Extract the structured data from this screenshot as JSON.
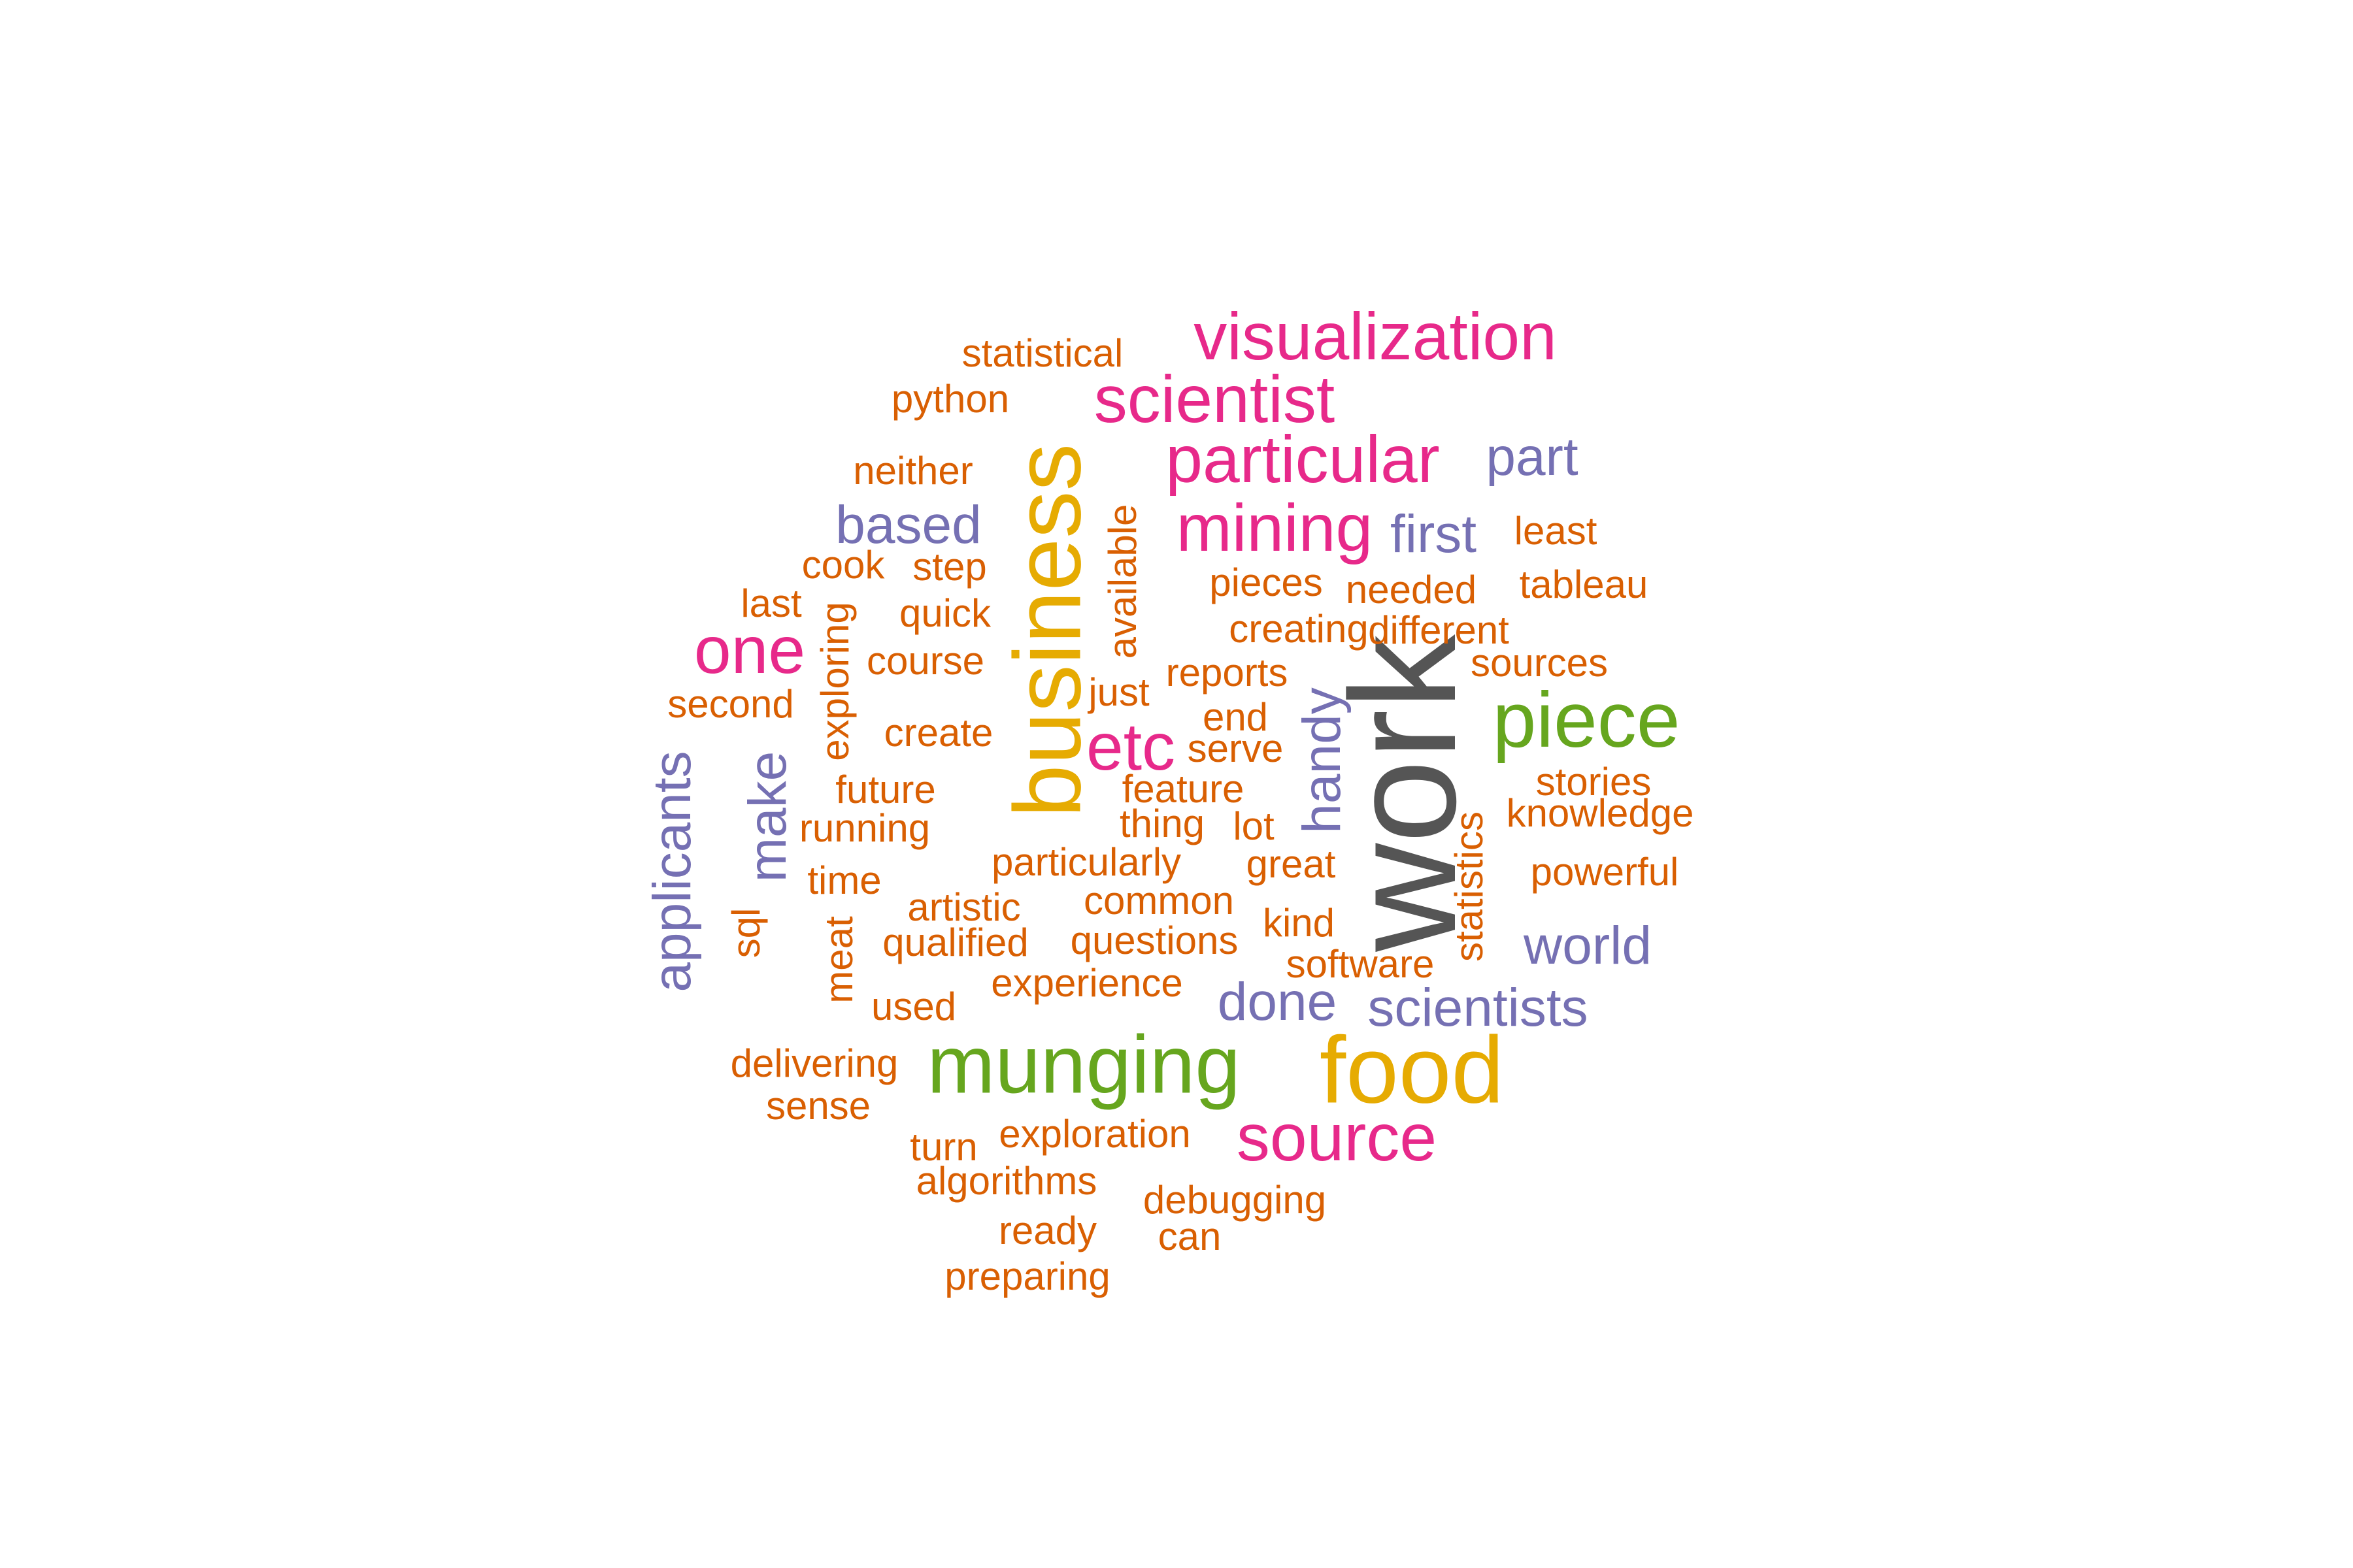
{
  "palette": {
    "orange": "#D95F02",
    "purple": "#7570B3",
    "magenta": "#E7298A",
    "green": "#66A61E",
    "gold": "#E6AB02",
    "gray": "#555555"
  },
  "words": [
    {
      "text": "work",
      "color": "gray"
    },
    {
      "text": "business",
      "color": "gold"
    },
    {
      "text": "food",
      "color": "gold"
    },
    {
      "text": "munging",
      "color": "green"
    },
    {
      "text": "piece",
      "color": "green"
    },
    {
      "text": "visualization",
      "color": "magenta"
    },
    {
      "text": "scientist",
      "color": "magenta"
    },
    {
      "text": "particular",
      "color": "magenta"
    },
    {
      "text": "mining",
      "color": "magenta"
    },
    {
      "text": "source",
      "color": "magenta"
    },
    {
      "text": "one",
      "color": "magenta"
    },
    {
      "text": "etc",
      "color": "magenta"
    },
    {
      "text": "based",
      "color": "purple"
    },
    {
      "text": "part",
      "color": "purple"
    },
    {
      "text": "first",
      "color": "purple"
    },
    {
      "text": "applicants",
      "color": "purple"
    },
    {
      "text": "make",
      "color": "purple"
    },
    {
      "text": "handy",
      "color": "purple"
    },
    {
      "text": "world",
      "color": "purple"
    },
    {
      "text": "done",
      "color": "purple"
    },
    {
      "text": "scientists",
      "color": "purple"
    },
    {
      "text": "statistical",
      "color": "orange"
    },
    {
      "text": "python",
      "color": "orange"
    },
    {
      "text": "neither",
      "color": "orange"
    },
    {
      "text": "cook",
      "color": "orange"
    },
    {
      "text": "step",
      "color": "orange"
    },
    {
      "text": "last",
      "color": "orange"
    },
    {
      "text": "quick",
      "color": "orange"
    },
    {
      "text": "course",
      "color": "orange"
    },
    {
      "text": "second",
      "color": "orange"
    },
    {
      "text": "exploring",
      "color": "orange"
    },
    {
      "text": "available",
      "color": "orange"
    },
    {
      "text": "create",
      "color": "orange"
    },
    {
      "text": "future",
      "color": "orange"
    },
    {
      "text": "running",
      "color": "orange"
    },
    {
      "text": "time",
      "color": "orange"
    },
    {
      "text": "sql",
      "color": "orange"
    },
    {
      "text": "meat",
      "color": "orange"
    },
    {
      "text": "artistic",
      "color": "orange"
    },
    {
      "text": "qualified",
      "color": "orange"
    },
    {
      "text": "used",
      "color": "orange"
    },
    {
      "text": "particularly",
      "color": "orange"
    },
    {
      "text": "common",
      "color": "orange"
    },
    {
      "text": "questions",
      "color": "orange"
    },
    {
      "text": "experience",
      "color": "orange"
    },
    {
      "text": "just",
      "color": "orange"
    },
    {
      "text": "reports",
      "color": "orange"
    },
    {
      "text": "end",
      "color": "orange"
    },
    {
      "text": "serve",
      "color": "orange"
    },
    {
      "text": "feature",
      "color": "orange"
    },
    {
      "text": "thing",
      "color": "orange"
    },
    {
      "text": "lot",
      "color": "orange"
    },
    {
      "text": "great",
      "color": "orange"
    },
    {
      "text": "kind",
      "color": "orange"
    },
    {
      "text": "software",
      "color": "orange"
    },
    {
      "text": "pieces",
      "color": "orange"
    },
    {
      "text": "needed",
      "color": "orange"
    },
    {
      "text": "creating",
      "color": "orange"
    },
    {
      "text": "different",
      "color": "orange"
    },
    {
      "text": "least",
      "color": "orange"
    },
    {
      "text": "tableau",
      "color": "orange"
    },
    {
      "text": "sources",
      "color": "orange"
    },
    {
      "text": "stories",
      "color": "orange"
    },
    {
      "text": "knowledge",
      "color": "orange"
    },
    {
      "text": "powerful",
      "color": "orange"
    },
    {
      "text": "statistics",
      "color": "orange"
    },
    {
      "text": "delivering",
      "color": "orange"
    },
    {
      "text": "sense",
      "color": "orange"
    },
    {
      "text": "turn",
      "color": "orange"
    },
    {
      "text": "exploration",
      "color": "orange"
    },
    {
      "text": "algorithms",
      "color": "orange"
    },
    {
      "text": "debugging",
      "color": "orange"
    },
    {
      "text": "ready",
      "color": "orange"
    },
    {
      "text": "can",
      "color": "orange"
    },
    {
      "text": "preparing",
      "color": "orange"
    }
  ]
}
